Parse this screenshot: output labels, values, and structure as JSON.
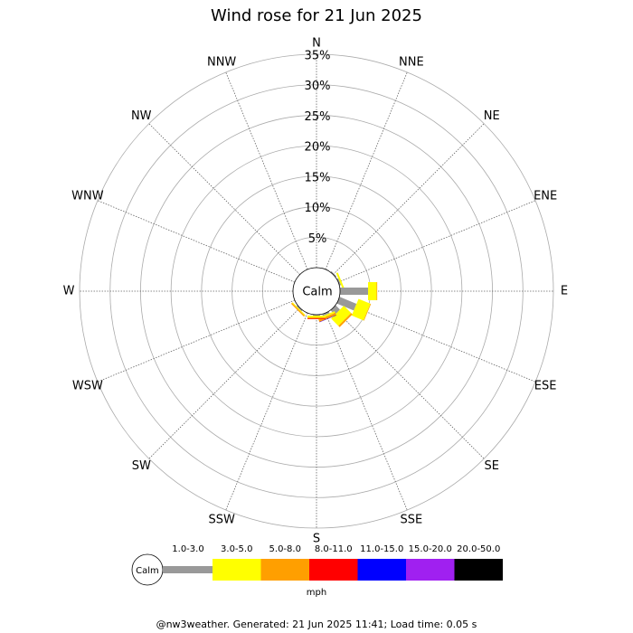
{
  "chart_data": {
    "type": "windrose",
    "title": "Wind rose for 21 Jun 2025",
    "directions": [
      "N",
      "NNE",
      "NE",
      "ENE",
      "E",
      "ESE",
      "SE",
      "SSE",
      "S",
      "SSW",
      "SW",
      "WSW",
      "W",
      "WNW",
      "NW",
      "NNW"
    ],
    "calm_label": "Calm",
    "rlim": [
      0,
      35
    ],
    "rticks": [
      {
        "value": 5,
        "label": "5%"
      },
      {
        "value": 10,
        "label": "10%"
      },
      {
        "value": 15,
        "label": "15%"
      },
      {
        "value": 20,
        "label": "20%"
      },
      {
        "value": 25,
        "label": "25%"
      },
      {
        "value": 30,
        "label": "30%"
      },
      {
        "value": 35,
        "label": "35%"
      }
    ],
    "series": [
      {
        "name": "1.0-3.0",
        "color": "#999999",
        "values": [
          0,
          0.1,
          0.2,
          0.25,
          4.6,
          3.0,
          1.0,
          0.3,
          0.15,
          0,
          0.2,
          0,
          0,
          0,
          0,
          0
        ]
      },
      {
        "name": "3.0-5.0",
        "color": "#ffff00",
        "values": [
          0,
          0,
          0,
          0.3,
          1.4,
          2.1,
          1.7,
          0.3,
          0.3,
          0,
          0.15,
          0,
          0,
          0,
          0,
          0
        ]
      },
      {
        "name": "5.0-8.0",
        "color": "#ff9f00",
        "values": [
          0,
          0,
          0,
          0,
          0.1,
          0.1,
          0.3,
          0.35,
          0.2,
          0,
          0.2,
          0,
          0,
          0,
          0,
          0
        ]
      },
      {
        "name": "8.0-11.0",
        "color": "#ff0000",
        "values": [
          0,
          0,
          0,
          0,
          0,
          0,
          0,
          0.05,
          0.1,
          0,
          0,
          0,
          0,
          0,
          0,
          0
        ]
      },
      {
        "name": "11.0-15.0",
        "color": "#0000ff",
        "values": [
          0,
          0,
          0,
          0,
          0,
          0,
          0,
          0.05,
          0,
          0,
          0,
          0,
          0,
          0,
          0,
          0
        ]
      },
      {
        "name": "15.0-20.0",
        "color": "#a020f0",
        "values": [
          0,
          0,
          0,
          0,
          0,
          0,
          0,
          0,
          0,
          0,
          0,
          0,
          0,
          0,
          0,
          0
        ]
      },
      {
        "name": "20.0-50.0",
        "color": "#000000",
        "values": [
          0,
          0,
          0,
          0,
          0,
          0,
          0,
          0,
          0,
          0,
          0,
          0,
          0,
          0,
          0,
          0
        ]
      }
    ],
    "unit": "mph",
    "footer": "@nw3weather. Generated: 21 Jun 2025 11:41; Load time: 0.05 s"
  }
}
